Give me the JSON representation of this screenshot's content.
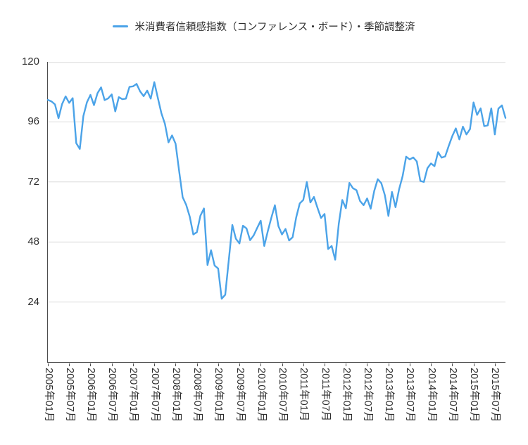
{
  "colors": {
    "line": "#4BA3E8",
    "grid": "#DCDCDC",
    "axis": "#4D4D4D",
    "text": "#2D2D2D",
    "background": "#FFFFFF"
  },
  "chart_data": {
    "type": "line",
    "title": "米消費者信頼感指数（コンファレンス・ボード）・季節調整済",
    "legend_position": "top-center",
    "grid": "horizontal",
    "x_start": "2005年01月",
    "x_frequency": "monthly",
    "x_tick_step": 6,
    "x_tick_labels": [
      "2005年01月",
      "2005年07月",
      "2006年01月",
      "2006年07月",
      "2007年01月",
      "2007年07月",
      "2008年01月",
      "2008年07月",
      "2009年01月",
      "2009年07月",
      "2010年01月",
      "2010年07月",
      "2011年01月",
      "2011年07月",
      "2012年01月",
      "2012年07月",
      "2013年01月",
      "2013年07月",
      "2014年01月",
      "2014年07月",
      "2015年01月",
      "2015年07月"
    ],
    "y_ticks": [
      24,
      48,
      72,
      96,
      120
    ],
    "ylim": [
      0,
      120
    ],
    "series": [
      {
        "name": "米消費者信頼感指数（コンファレンス・ボード）・季節調整済",
        "color": "#4BA3E8",
        "values": [
          104.8,
          104.2,
          103.0,
          97.5,
          103.1,
          106.2,
          103.6,
          105.5,
          87.5,
          85.2,
          98.3,
          103.8,
          106.8,
          102.7,
          107.5,
          109.8,
          104.7,
          105.4,
          107.0,
          100.2,
          105.9,
          105.1,
          105.3,
          110.0,
          110.2,
          111.2,
          108.2,
          106.3,
          108.5,
          105.3,
          111.9,
          105.6,
          99.5,
          95.2,
          87.8,
          90.6,
          87.3,
          76.4,
          65.9,
          62.8,
          58.1,
          51.0,
          51.9,
          58.5,
          61.4,
          38.8,
          44.7,
          38.6,
          37.4,
          25.3,
          26.9,
          40.8,
          54.8,
          49.3,
          47.4,
          54.5,
          53.4,
          48.7,
          50.6,
          53.6,
          56.5,
          46.4,
          52.3,
          57.7,
          62.7,
          54.3,
          51.0,
          53.2,
          48.6,
          49.9,
          57.8,
          63.4,
          64.8,
          72.0,
          63.8,
          66.0,
          61.7,
          57.6,
          59.2,
          45.2,
          46.4,
          40.9,
          55.2,
          64.8,
          61.5,
          71.6,
          69.5,
          68.7,
          64.4,
          62.7,
          65.4,
          61.3,
          68.4,
          73.1,
          71.5,
          66.7,
          58.4,
          68.0,
          61.9,
          69.0,
          74.3,
          82.1,
          81.0,
          81.8,
          80.2,
          72.4,
          72.0,
          77.5,
          79.4,
          78.3,
          83.9,
          81.7,
          82.2,
          86.4,
          90.3,
          93.4,
          89.0,
          94.1,
          91.0,
          93.1,
          103.8,
          98.8,
          101.4,
          94.3,
          94.6,
          101.4,
          91.0,
          101.3,
          102.6,
          97.6
        ]
      }
    ]
  }
}
